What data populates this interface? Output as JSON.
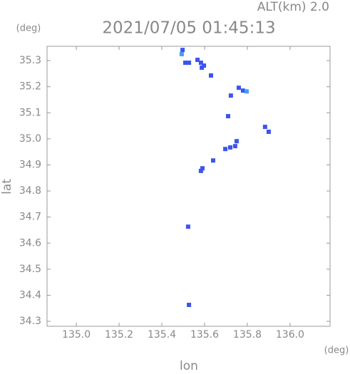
{
  "chart_data": {
    "type": "scatter",
    "title": "2021/07/05 01:45:13",
    "subtitle": "ALT(km) 2.0",
    "x_label": "lon",
    "y_label": "lat",
    "x_unit": "(deg)",
    "y_unit": "(deg)",
    "xlim": [
      134.863,
      136.187
    ],
    "ylim": [
      34.281,
      35.355
    ],
    "xticks": [
      {
        "value": 135.0,
        "label": "135.0"
      },
      135.2,
      135.4,
      135.6,
      135.8,
      {
        "value": 136.0,
        "label": "136.0"
      }
    ],
    "yticks": [
      34.3,
      34.4,
      34.5,
      34.6,
      34.7,
      34.8,
      34.9,
      {
        "value": 35.0,
        "label": "35.0"
      },
      35.1,
      35.2,
      35.3
    ],
    "series": [
      {
        "color": "#3b55ee",
        "x": [
          135.497,
          135.51,
          135.527,
          135.567,
          135.583,
          135.587,
          135.597,
          135.63,
          135.723,
          135.76,
          135.78,
          135.71,
          135.883,
          135.9,
          135.75,
          135.743,
          135.72,
          135.697,
          135.64,
          135.59,
          135.583,
          135.523,
          135.527
        ],
        "values": [
          35.341,
          35.292,
          35.292,
          35.303,
          35.292,
          35.273,
          35.281,
          35.243,
          35.166,
          35.196,
          35.185,
          35.087,
          35.046,
          35.027,
          34.991,
          34.972,
          34.967,
          34.961,
          34.917,
          34.887,
          34.877,
          34.663,
          34.363
        ]
      },
      {
        "color": "#4a9cf2",
        "x": [
          135.493,
          135.797
        ],
        "values": [
          35.325,
          35.182
        ]
      }
    ]
  }
}
